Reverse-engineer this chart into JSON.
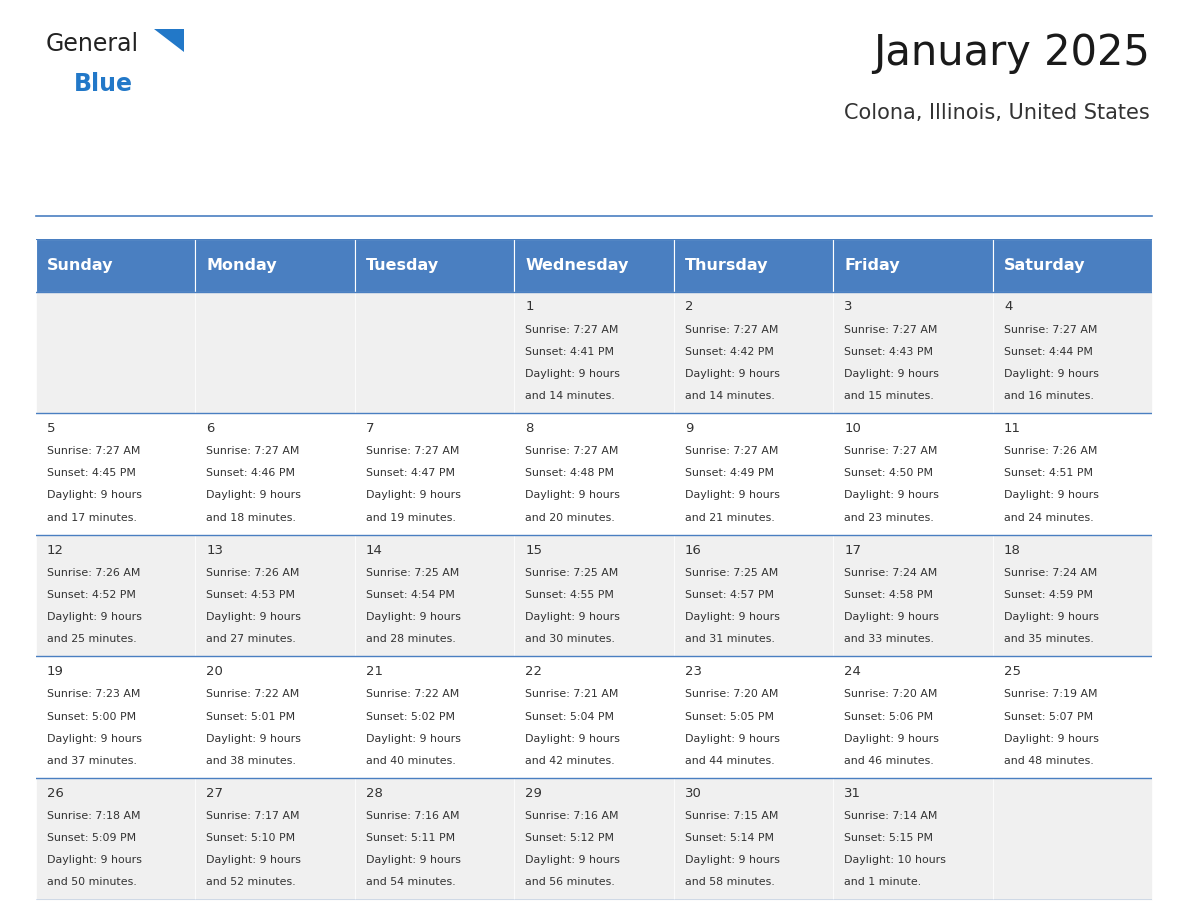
{
  "title": "January 2025",
  "subtitle": "Colona, Illinois, United States",
  "days_of_week": [
    "Sunday",
    "Monday",
    "Tuesday",
    "Wednesday",
    "Thursday",
    "Friday",
    "Saturday"
  ],
  "header_bg": "#4a7fc1",
  "header_text_color": "#ffffff",
  "cell_bg_light": "#f0f0f0",
  "cell_bg_white": "#ffffff",
  "cell_text_color": "#333333",
  "border_color": "#4a7fc1",
  "title_color": "#1a1a1a",
  "subtitle_color": "#333333",
  "logo_black": "#222222",
  "logo_blue": "#2278c8",
  "triangle_color": "#2278c8",
  "days": [
    {
      "date": 1,
      "col": 3,
      "row": 0,
      "sunrise": "7:27 AM",
      "sunset": "4:41 PM",
      "daylight_h": "9 hours",
      "daylight_m": "and 14 minutes."
    },
    {
      "date": 2,
      "col": 4,
      "row": 0,
      "sunrise": "7:27 AM",
      "sunset": "4:42 PM",
      "daylight_h": "9 hours",
      "daylight_m": "and 14 minutes."
    },
    {
      "date": 3,
      "col": 5,
      "row": 0,
      "sunrise": "7:27 AM",
      "sunset": "4:43 PM",
      "daylight_h": "9 hours",
      "daylight_m": "and 15 minutes."
    },
    {
      "date": 4,
      "col": 6,
      "row": 0,
      "sunrise": "7:27 AM",
      "sunset": "4:44 PM",
      "daylight_h": "9 hours",
      "daylight_m": "and 16 minutes."
    },
    {
      "date": 5,
      "col": 0,
      "row": 1,
      "sunrise": "7:27 AM",
      "sunset": "4:45 PM",
      "daylight_h": "9 hours",
      "daylight_m": "and 17 minutes."
    },
    {
      "date": 6,
      "col": 1,
      "row": 1,
      "sunrise": "7:27 AM",
      "sunset": "4:46 PM",
      "daylight_h": "9 hours",
      "daylight_m": "and 18 minutes."
    },
    {
      "date": 7,
      "col": 2,
      "row": 1,
      "sunrise": "7:27 AM",
      "sunset": "4:47 PM",
      "daylight_h": "9 hours",
      "daylight_m": "and 19 minutes."
    },
    {
      "date": 8,
      "col": 3,
      "row": 1,
      "sunrise": "7:27 AM",
      "sunset": "4:48 PM",
      "daylight_h": "9 hours",
      "daylight_m": "and 20 minutes."
    },
    {
      "date": 9,
      "col": 4,
      "row": 1,
      "sunrise": "7:27 AM",
      "sunset": "4:49 PM",
      "daylight_h": "9 hours",
      "daylight_m": "and 21 minutes."
    },
    {
      "date": 10,
      "col": 5,
      "row": 1,
      "sunrise": "7:27 AM",
      "sunset": "4:50 PM",
      "daylight_h": "9 hours",
      "daylight_m": "and 23 minutes."
    },
    {
      "date": 11,
      "col": 6,
      "row": 1,
      "sunrise": "7:26 AM",
      "sunset": "4:51 PM",
      "daylight_h": "9 hours",
      "daylight_m": "and 24 minutes."
    },
    {
      "date": 12,
      "col": 0,
      "row": 2,
      "sunrise": "7:26 AM",
      "sunset": "4:52 PM",
      "daylight_h": "9 hours",
      "daylight_m": "and 25 minutes."
    },
    {
      "date": 13,
      "col": 1,
      "row": 2,
      "sunrise": "7:26 AM",
      "sunset": "4:53 PM",
      "daylight_h": "9 hours",
      "daylight_m": "and 27 minutes."
    },
    {
      "date": 14,
      "col": 2,
      "row": 2,
      "sunrise": "7:25 AM",
      "sunset": "4:54 PM",
      "daylight_h": "9 hours",
      "daylight_m": "and 28 minutes."
    },
    {
      "date": 15,
      "col": 3,
      "row": 2,
      "sunrise": "7:25 AM",
      "sunset": "4:55 PM",
      "daylight_h": "9 hours",
      "daylight_m": "and 30 minutes."
    },
    {
      "date": 16,
      "col": 4,
      "row": 2,
      "sunrise": "7:25 AM",
      "sunset": "4:57 PM",
      "daylight_h": "9 hours",
      "daylight_m": "and 31 minutes."
    },
    {
      "date": 17,
      "col": 5,
      "row": 2,
      "sunrise": "7:24 AM",
      "sunset": "4:58 PM",
      "daylight_h": "9 hours",
      "daylight_m": "and 33 minutes."
    },
    {
      "date": 18,
      "col": 6,
      "row": 2,
      "sunrise": "7:24 AM",
      "sunset": "4:59 PM",
      "daylight_h": "9 hours",
      "daylight_m": "and 35 minutes."
    },
    {
      "date": 19,
      "col": 0,
      "row": 3,
      "sunrise": "7:23 AM",
      "sunset": "5:00 PM",
      "daylight_h": "9 hours",
      "daylight_m": "and 37 minutes."
    },
    {
      "date": 20,
      "col": 1,
      "row": 3,
      "sunrise": "7:22 AM",
      "sunset": "5:01 PM",
      "daylight_h": "9 hours",
      "daylight_m": "and 38 minutes."
    },
    {
      "date": 21,
      "col": 2,
      "row": 3,
      "sunrise": "7:22 AM",
      "sunset": "5:02 PM",
      "daylight_h": "9 hours",
      "daylight_m": "and 40 minutes."
    },
    {
      "date": 22,
      "col": 3,
      "row": 3,
      "sunrise": "7:21 AM",
      "sunset": "5:04 PM",
      "daylight_h": "9 hours",
      "daylight_m": "and 42 minutes."
    },
    {
      "date": 23,
      "col": 4,
      "row": 3,
      "sunrise": "7:20 AM",
      "sunset": "5:05 PM",
      "daylight_h": "9 hours",
      "daylight_m": "and 44 minutes."
    },
    {
      "date": 24,
      "col": 5,
      "row": 3,
      "sunrise": "7:20 AM",
      "sunset": "5:06 PM",
      "daylight_h": "9 hours",
      "daylight_m": "and 46 minutes."
    },
    {
      "date": 25,
      "col": 6,
      "row": 3,
      "sunrise": "7:19 AM",
      "sunset": "5:07 PM",
      "daylight_h": "9 hours",
      "daylight_m": "and 48 minutes."
    },
    {
      "date": 26,
      "col": 0,
      "row": 4,
      "sunrise": "7:18 AM",
      "sunset": "5:09 PM",
      "daylight_h": "9 hours",
      "daylight_m": "and 50 minutes."
    },
    {
      "date": 27,
      "col": 1,
      "row": 4,
      "sunrise": "7:17 AM",
      "sunset": "5:10 PM",
      "daylight_h": "9 hours",
      "daylight_m": "and 52 minutes."
    },
    {
      "date": 28,
      "col": 2,
      "row": 4,
      "sunrise": "7:16 AM",
      "sunset": "5:11 PM",
      "daylight_h": "9 hours",
      "daylight_m": "and 54 minutes."
    },
    {
      "date": 29,
      "col": 3,
      "row": 4,
      "sunrise": "7:16 AM",
      "sunset": "5:12 PM",
      "daylight_h": "9 hours",
      "daylight_m": "and 56 minutes."
    },
    {
      "date": 30,
      "col": 4,
      "row": 4,
      "sunrise": "7:15 AM",
      "sunset": "5:14 PM",
      "daylight_h": "9 hours",
      "daylight_m": "and 58 minutes."
    },
    {
      "date": 31,
      "col": 5,
      "row": 4,
      "sunrise": "7:14 AM",
      "sunset": "5:15 PM",
      "daylight_h": "10 hours",
      "daylight_m": "and 1 minute."
    }
  ]
}
